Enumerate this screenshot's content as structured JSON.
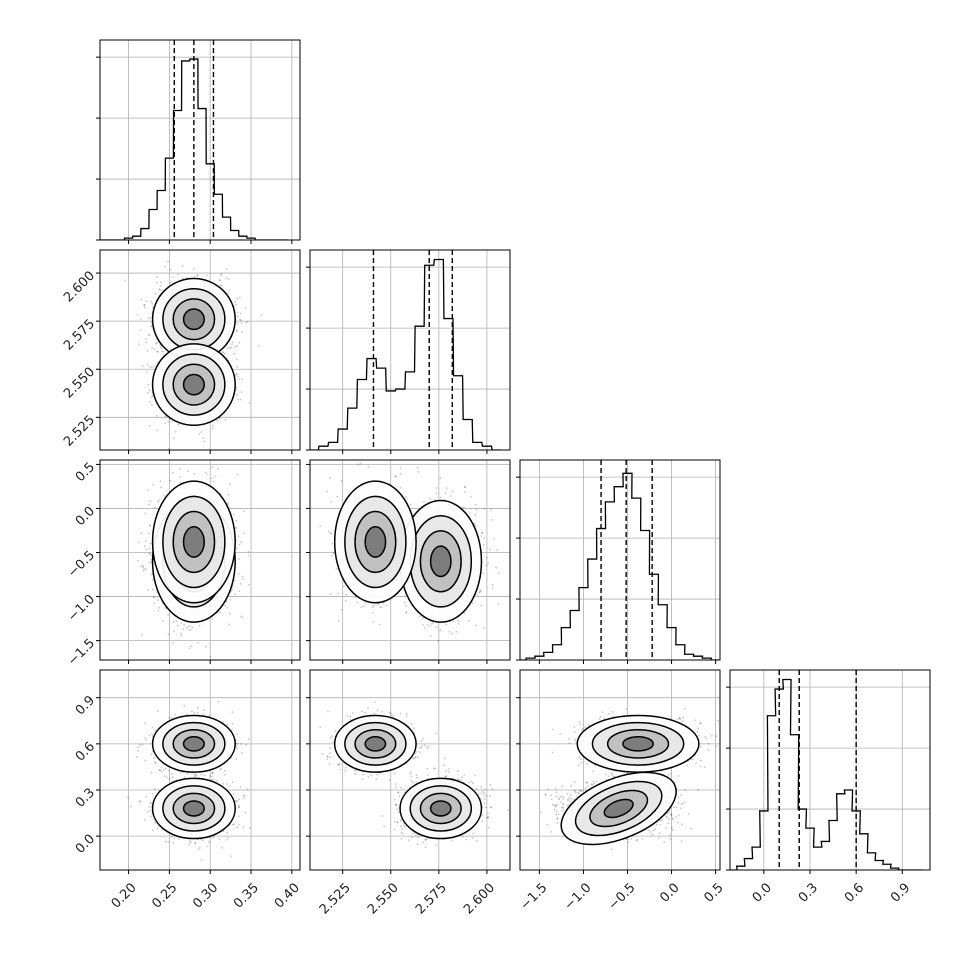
{
  "chart_data": {
    "type": "corner",
    "parameters": [
      {
        "range": [
          0.165,
          0.41
        ],
        "ticks": [
          0.2,
          0.25,
          0.3,
          0.35,
          0.4
        ],
        "tick_labels": [
          "0.20",
          "0.25",
          "0.30",
          "0.35",
          "0.40"
        ],
        "quantiles": [
          0.256,
          0.28,
          0.304
        ],
        "hist_bin_width": 0.0098,
        "hist_bins": [
          0.17,
          0.18,
          0.19,
          0.2,
          0.21,
          0.22,
          0.23,
          0.24,
          0.25,
          0.26,
          0.27,
          0.28,
          0.29,
          0.3,
          0.31,
          0.32,
          0.33,
          0.34,
          0.35,
          0.36,
          0.37,
          0.38,
          0.39
        ],
        "hist_counts": [
          0,
          0,
          0,
          0.01,
          0.02,
          0.06,
          0.16,
          0.26,
          0.43,
          0.68,
          0.94,
          0.95,
          0.69,
          0.4,
          0.24,
          0.12,
          0.05,
          0.02,
          0.01,
          0,
          0,
          0,
          0
        ]
      },
      {
        "range": [
          2.508,
          2.612
        ],
        "ticks": [
          2.525,
          2.55,
          2.575,
          2.6
        ],
        "tick_labels": [
          "2.525",
          "2.550",
          "2.575",
          "2.600"
        ],
        "quantiles": [
          2.541,
          2.57,
          2.582
        ],
        "hist_bin_width": 0.0047,
        "hist_bins": [
          2.51,
          2.515,
          2.52,
          2.525,
          2.53,
          2.535,
          2.54,
          2.545,
          2.55,
          2.555,
          2.56,
          2.565,
          2.57,
          2.575,
          2.58,
          2.585,
          2.59,
          2.595,
          2.6,
          2.605
        ],
        "hist_counts": [
          0,
          0.02,
          0.04,
          0.11,
          0.22,
          0.37,
          0.48,
          0.43,
          0.31,
          0.32,
          0.41,
          0.65,
          0.97,
          1.0,
          0.69,
          0.39,
          0.16,
          0.04,
          0.02,
          0
        ]
      },
      {
        "range": [
          -1.72,
          0.55
        ],
        "ticks": [
          -1.5,
          -1.0,
          -0.5,
          0.0,
          0.5
        ],
        "tick_labels": [
          "−1.5",
          "−1.0",
          "−0.5",
          "0.0",
          "0.5"
        ],
        "quantiles": [
          -0.8,
          -0.515,
          -0.22
        ],
        "hist_bin_width": 0.102,
        "hist_bins": [
          -1.7,
          -1.6,
          -1.5,
          -1.4,
          -1.3,
          -1.2,
          -1.1,
          -1.0,
          -0.9,
          -0.8,
          -0.7,
          -0.6,
          -0.5,
          -0.4,
          -0.3,
          -0.2,
          -0.1,
          0.0,
          0.1,
          0.2,
          0.3,
          0.4,
          0.5
        ],
        "hist_counts": [
          0,
          0.01,
          0.02,
          0.04,
          0.08,
          0.17,
          0.26,
          0.38,
          0.53,
          0.69,
          0.83,
          0.91,
          0.98,
          0.85,
          0.68,
          0.45,
          0.29,
          0.17,
          0.08,
          0.03,
          0.02,
          0.01,
          0
        ]
      },
      {
        "range": [
          -0.22,
          1.08
        ],
        "ticks": [
          0.0,
          0.3,
          0.6,
          0.9
        ],
        "tick_labels": [
          "0.0",
          "0.3",
          "0.6",
          "0.9"
        ],
        "quantiles": [
          0.1,
          0.23,
          0.6
        ],
        "hist_bin_width": 0.0537,
        "hist_bins": [
          -0.2,
          -0.15,
          -0.1,
          -0.05,
          0.0,
          0.05,
          0.1,
          0.15,
          0.2,
          0.25,
          0.3,
          0.35,
          0.4,
          0.45,
          0.5,
          0.55,
          0.6,
          0.65,
          0.7,
          0.75,
          0.8,
          0.85,
          0.9,
          0.95,
          1.0
        ],
        "hist_counts": [
          0,
          0.02,
          0.06,
          0.12,
          0.31,
          0.81,
          0.95,
          1.0,
          0.71,
          0.32,
          0.22,
          0.12,
          0.15,
          0.26,
          0.4,
          0.42,
          0.31,
          0.19,
          0.09,
          0.05,
          0.03,
          0.01,
          0,
          0,
          0
        ]
      }
    ],
    "hist_yticks": [
      0,
      0.32,
      0.64,
      0.96
    ],
    "modes": [
      {
        "weight": 0.62,
        "mean": [
          0.28,
          2.576,
          -0.6,
          0.18
        ],
        "sd": [
          0.022,
          0.0092,
          0.3,
          0.085
        ]
      },
      {
        "weight": 0.38,
        "mean": [
          0.28,
          2.542,
          -0.38,
          0.6
        ],
        "sd": [
          0.022,
          0.0092,
          0.3,
          0.08
        ]
      }
    ],
    "contour_levels_sigma": [
      0.5,
      1.0,
      1.5,
      2.0
    ],
    "grid": true,
    "legend": "none"
  }
}
